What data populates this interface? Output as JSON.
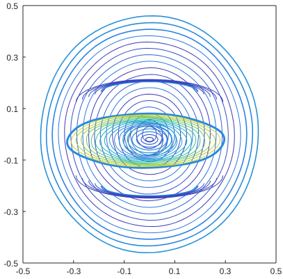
{
  "chart_data": {
    "type": "contour",
    "title": "",
    "xlabel": "",
    "ylabel": "",
    "xlim": [
      -0.5,
      0.5
    ],
    "ylim": [
      -0.5,
      0.5
    ],
    "x_ticks": [
      "-0.5",
      "-0.3",
      "-0.1",
      "0.1",
      "0.3",
      "0.5"
    ],
    "y_ticks": [
      "0.5",
      "0.3",
      "0.1",
      "-0.1",
      "-0.3",
      "-0.5"
    ],
    "grid": false,
    "legend": "none",
    "colormap": "parula",
    "colors": {
      "low": "#3e26a8",
      "mid_low": "#2d7ee6",
      "mid": "#17b9c0",
      "mid_high": "#90c63f",
      "high": "#f9df25"
    },
    "features": {
      "outer_shock": {
        "center": [
          0.0,
          0.0
        ],
        "rx": 0.43,
        "ry": 0.46,
        "levels": 18
      },
      "bubble": {
        "center": [
          -0.015,
          -0.025
        ],
        "rx": 0.31,
        "ry": 0.105
      },
      "bubble_shell_levels": 14,
      "core_rings": {
        "center": [
          0.0,
          -0.02
        ],
        "levels": 6
      },
      "upper_cap": {
        "center_y": 0.165,
        "rx": 0.19
      },
      "lower_cap": {
        "center_y": -0.2,
        "rx": 0.19
      }
    }
  }
}
